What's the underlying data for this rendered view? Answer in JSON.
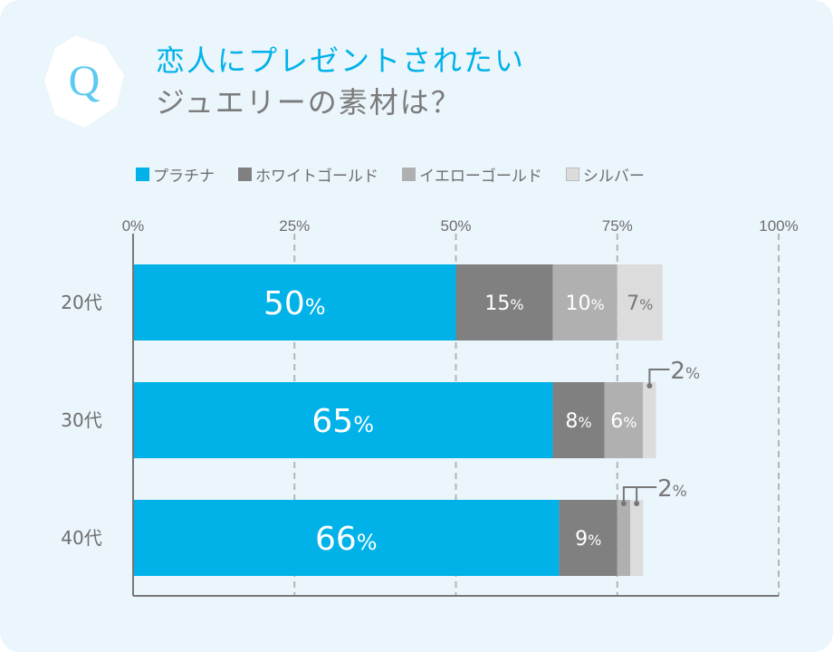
{
  "title": {
    "line1": "恋人にプレゼントされたい",
    "line2": "ジュエリーの素材は？",
    "badge": "Q"
  },
  "chart_data": {
    "type": "bar",
    "orientation": "horizontal",
    "stacked": true,
    "categories": [
      "20代",
      "30代",
      "40代"
    ],
    "series": [
      {
        "name": "プラチナ",
        "color": "#00b2e8",
        "values": [
          50,
          65,
          66
        ]
      },
      {
        "name": "ホワイトゴールド",
        "color": "#808080",
        "values": [
          15,
          8,
          9
        ]
      },
      {
        "name": "イエローゴールド",
        "color": "#b0b0b0",
        "values": [
          10,
          6,
          2
        ]
      },
      {
        "name": "シルバー",
        "color": "#dcdcdc",
        "values": [
          7,
          2,
          2
        ]
      }
    ],
    "data_labels": [
      [
        "50%",
        "15%",
        "10%",
        "7%"
      ],
      [
        "65%",
        "8%",
        "6%",
        ""
      ],
      [
        "66%",
        "9%",
        "",
        ""
      ]
    ],
    "callouts": [
      {
        "row": 1,
        "series": [
          3
        ],
        "text": "2%"
      },
      {
        "row": 2,
        "series": [
          2,
          3
        ],
        "text": "2%"
      }
    ],
    "xlim": [
      0,
      100
    ],
    "xticks": [
      0,
      25,
      50,
      75,
      100
    ],
    "xtick_labels": [
      "0%",
      "25%",
      "50%",
      "75%",
      "100%"
    ],
    "grid": true,
    "legend_position": "top"
  }
}
